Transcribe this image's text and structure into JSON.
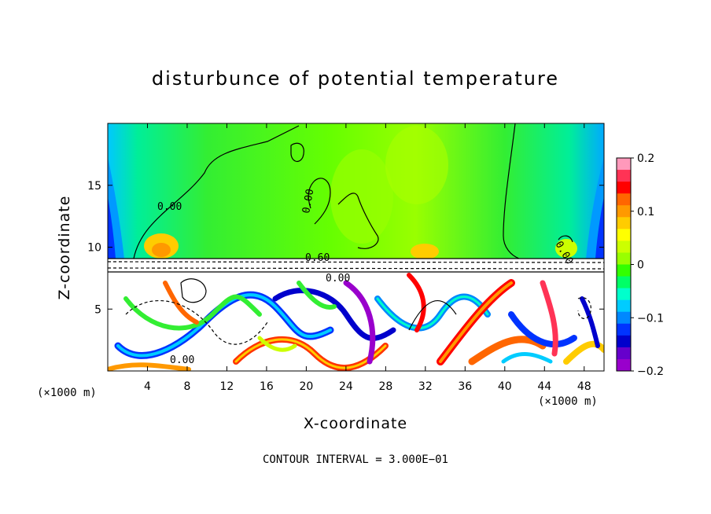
{
  "chart_data": {
    "type": "heatmap",
    "title": "disturbunce of potential temperature",
    "xlabel": "X-coordinate",
    "ylabel": "Z-coordinate",
    "x_unit": "(×1000 m)",
    "xlim": [
      0,
      50
    ],
    "ylim": [
      0,
      20
    ],
    "x_ticks": [
      4,
      8,
      12,
      16,
      20,
      24,
      28,
      32,
      36,
      40,
      44,
      48
    ],
    "y_ticks": [
      5,
      10,
      15
    ],
    "colorbar": {
      "range": [
        -0.2,
        0.2
      ],
      "ticks": [
        "0.2",
        "0.1",
        "0",
        "−0.1",
        "−0.2"
      ],
      "colors": [
        "#ff99bb",
        "#ff3355",
        "#ff0000",
        "#ff6600",
        "#ff9900",
        "#ffcc00",
        "#ffff00",
        "#ccff00",
        "#99ff00",
        "#33ff00",
        "#00ff66",
        "#00ffcc",
        "#00ccff",
        "#0088ff",
        "#0033ff",
        "#0000cc",
        "#6600cc",
        "#9900cc"
      ]
    },
    "contour_labels": [
      "0.00",
      "0.00",
      "0.00",
      "0.60",
      "0.00",
      "0.00"
    ],
    "contour_interval": "CONTOUR INTERVAL = 3.000E−01"
  },
  "labels": {
    "unit_left": "(×1000 m)",
    "unit_right": "(×1000 m)"
  }
}
